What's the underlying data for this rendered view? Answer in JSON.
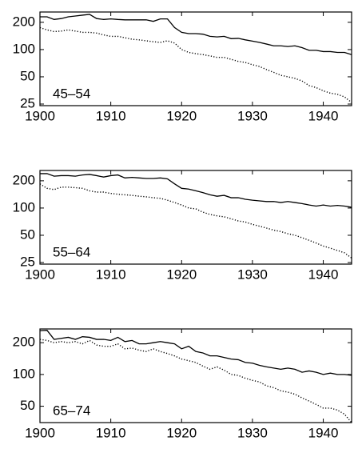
{
  "chart_data": [
    {
      "type": "line",
      "annotation": "45–54",
      "log_y": true,
      "xlim": [
        1900,
        1944
      ],
      "ylim": [
        24,
        260
      ],
      "xticks": [
        1900,
        1910,
        1920,
        1930,
        1940
      ],
      "yticks": [
        25,
        50,
        100,
        200
      ],
      "x": [
        1900,
        1901,
        1902,
        1903,
        1904,
        1905,
        1906,
        1907,
        1908,
        1909,
        1910,
        1911,
        1912,
        1913,
        1914,
        1915,
        1916,
        1917,
        1918,
        1919,
        1920,
        1921,
        1922,
        1923,
        1924,
        1925,
        1926,
        1927,
        1928,
        1929,
        1930,
        1931,
        1932,
        1933,
        1934,
        1935,
        1936,
        1937,
        1938,
        1939,
        1940,
        1941,
        1942,
        1943,
        1944
      ],
      "series": [
        {
          "color": "#000000",
          "style": "solid",
          "values": [
            230,
            230,
            215,
            220,
            230,
            235,
            240,
            245,
            220,
            215,
            218,
            215,
            213,
            213,
            213,
            213,
            205,
            218,
            218,
            175,
            155,
            150,
            150,
            148,
            140,
            138,
            140,
            132,
            133,
            128,
            124,
            120,
            115,
            110,
            110,
            108,
            110,
            105,
            98,
            98,
            95,
            95,
            93,
            93,
            88
          ]
        },
        {
          "color": "#000000",
          "style": "dotted",
          "values": [
            175,
            165,
            158,
            160,
            165,
            160,
            155,
            155,
            152,
            145,
            140,
            140,
            135,
            130,
            128,
            125,
            122,
            120,
            125,
            118,
            100,
            93,
            90,
            88,
            85,
            82,
            82,
            78,
            74,
            72,
            68,
            65,
            60,
            56,
            52,
            50,
            48,
            45,
            40,
            38,
            35,
            33,
            32,
            30,
            26
          ]
        }
      ]
    },
    {
      "type": "line",
      "annotation": "55–64",
      "log_y": true,
      "xlim": [
        1900,
        1944
      ],
      "ylim": [
        24,
        260
      ],
      "xticks": [
        1900,
        1910,
        1920,
        1930,
        1940
      ],
      "yticks": [
        25,
        50,
        100,
        200
      ],
      "x": [
        1900,
        1901,
        1902,
        1903,
        1904,
        1905,
        1906,
        1907,
        1908,
        1909,
        1910,
        1911,
        1912,
        1913,
        1914,
        1915,
        1916,
        1917,
        1918,
        1919,
        1920,
        1921,
        1922,
        1923,
        1924,
        1925,
        1926,
        1927,
        1928,
        1929,
        1930,
        1931,
        1932,
        1933,
        1934,
        1935,
        1936,
        1937,
        1938,
        1939,
        1940,
        1941,
        1942,
        1943,
        1944
      ],
      "series": [
        {
          "color": "#000000",
          "style": "solid",
          "values": [
            240,
            240,
            225,
            228,
            228,
            225,
            232,
            235,
            228,
            220,
            228,
            232,
            215,
            218,
            215,
            212,
            212,
            215,
            210,
            185,
            165,
            162,
            155,
            148,
            140,
            135,
            138,
            130,
            130,
            125,
            122,
            120,
            118,
            118,
            115,
            118,
            115,
            112,
            108,
            105,
            108,
            105,
            107,
            105,
            102
          ]
        },
        {
          "color": "#000000",
          "style": "dotted",
          "values": [
            185,
            165,
            160,
            170,
            170,
            168,
            165,
            155,
            150,
            150,
            145,
            142,
            140,
            138,
            135,
            133,
            130,
            128,
            122,
            115,
            108,
            100,
            98,
            90,
            85,
            82,
            80,
            76,
            72,
            70,
            66,
            63,
            60,
            57,
            55,
            52,
            50,
            47,
            44,
            41,
            38,
            36,
            34,
            32,
            28
          ]
        }
      ]
    },
    {
      "type": "line",
      "annotation": "65–74",
      "log_y": true,
      "xlim": [
        1900,
        1944
      ],
      "ylim": [
        35,
        270
      ],
      "xticks": [
        1900,
        1910,
        1920,
        1930,
        1940
      ],
      "yticks": [
        50,
        100,
        200
      ],
      "x": [
        1900,
        1901,
        1902,
        1903,
        1904,
        1905,
        1906,
        1907,
        1908,
        1909,
        1910,
        1911,
        1912,
        1913,
        1914,
        1915,
        1916,
        1917,
        1918,
        1919,
        1920,
        1921,
        1922,
        1923,
        1924,
        1925,
        1926,
        1927,
        1928,
        1929,
        1930,
        1931,
        1932,
        1933,
        1934,
        1935,
        1936,
        1937,
        1938,
        1939,
        1940,
        1941,
        1942,
        1943,
        1944
      ],
      "series": [
        {
          "color": "#000000",
          "style": "solid",
          "values": [
            260,
            262,
            215,
            220,
            225,
            215,
            228,
            225,
            215,
            215,
            210,
            225,
            205,
            210,
            195,
            195,
            200,
            205,
            200,
            195,
            175,
            185,
            165,
            160,
            150,
            150,
            145,
            140,
            138,
            130,
            128,
            122,
            118,
            115,
            112,
            115,
            112,
            105,
            108,
            105,
            100,
            103,
            100,
            100,
            98
          ]
        },
        {
          "color": "#000000",
          "style": "dotted",
          "values": [
            215,
            210,
            200,
            205,
            200,
            205,
            195,
            210,
            190,
            185,
            185,
            195,
            175,
            178,
            170,
            165,
            175,
            165,
            158,
            150,
            140,
            135,
            130,
            120,
            112,
            118,
            110,
            100,
            98,
            92,
            88,
            85,
            78,
            75,
            70,
            68,
            65,
            60,
            56,
            52,
            48,
            48,
            46,
            42,
            35
          ]
        }
      ]
    }
  ]
}
